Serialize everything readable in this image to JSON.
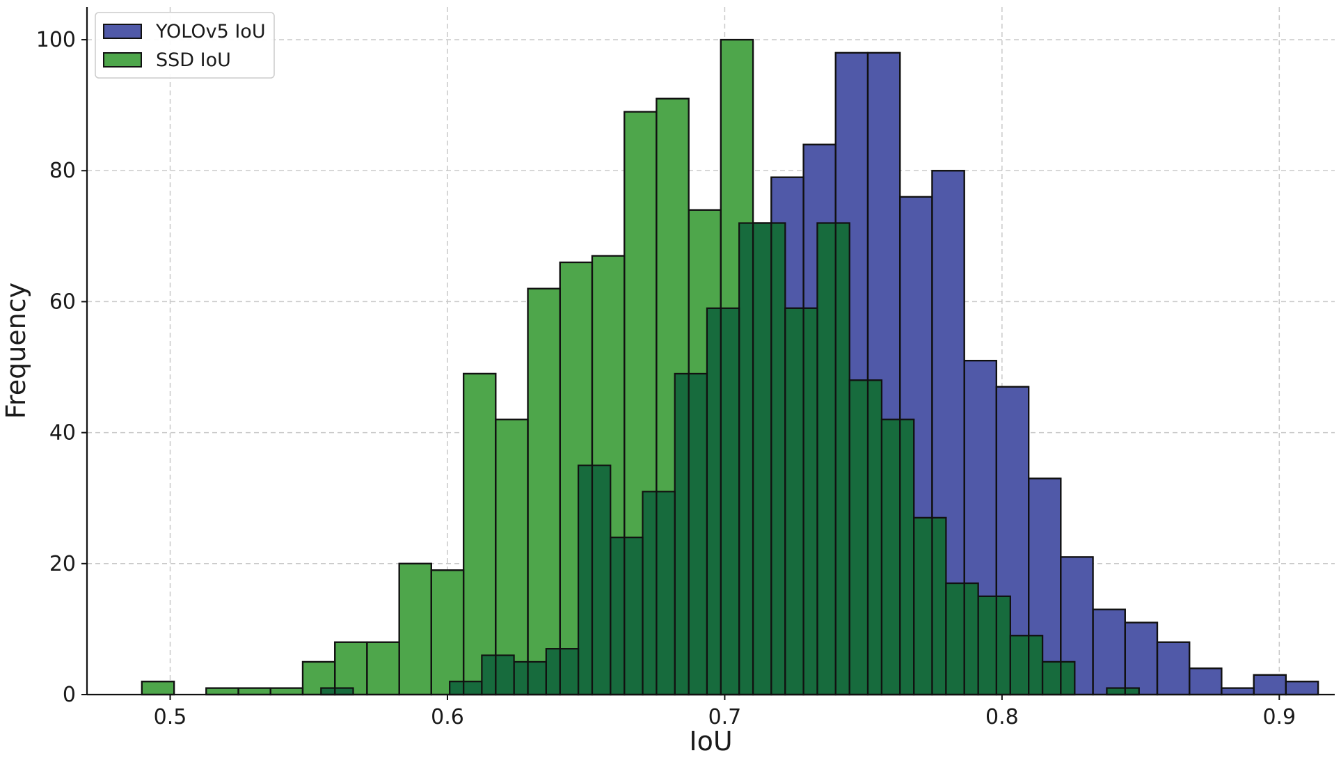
{
  "chart_data": {
    "type": "bar",
    "subtype": "overlapping-histogram",
    "title": "",
    "xlabel": "IoU",
    "ylabel": "Frequency",
    "xlim": [
      0.47,
      0.92
    ],
    "ylim": [
      0,
      105
    ],
    "x_ticks": [
      0.5,
      0.6,
      0.7,
      0.8,
      0.9
    ],
    "x_tick_labels": [
      "0.5",
      "0.6",
      "0.7",
      "0.8",
      "0.9"
    ],
    "y_ticks": [
      0,
      20,
      40,
      60,
      80,
      100
    ],
    "y_tick_labels": [
      "0",
      "20",
      "40",
      "60",
      "80",
      "100"
    ],
    "grid": true,
    "legend_position": "top-left",
    "overlap_color": "#176b3d",
    "series": [
      {
        "name": "YOLOv5 IoU",
        "color": "#5059a8",
        "bin_start": 0.5544,
        "bin_width": 0.0116,
        "values": [
          1,
          0,
          0,
          0,
          2,
          6,
          5,
          7,
          35,
          24,
          31,
          49,
          59,
          72,
          79,
          84,
          98,
          98,
          76,
          80,
          51,
          47,
          33,
          21,
          13,
          11,
          8,
          4,
          1,
          3,
          2
        ]
      },
      {
        "name": "SSD IoU",
        "color": "#4ea64b",
        "bin_start": 0.4898,
        "bin_width": 0.0116,
        "values": [
          2,
          0,
          1,
          1,
          1,
          5,
          8,
          8,
          20,
          19,
          49,
          42,
          62,
          66,
          67,
          89,
          91,
          74,
          100,
          72,
          59,
          72,
          48,
          42,
          27,
          17,
          15,
          9,
          5,
          0,
          1
        ]
      }
    ]
  }
}
